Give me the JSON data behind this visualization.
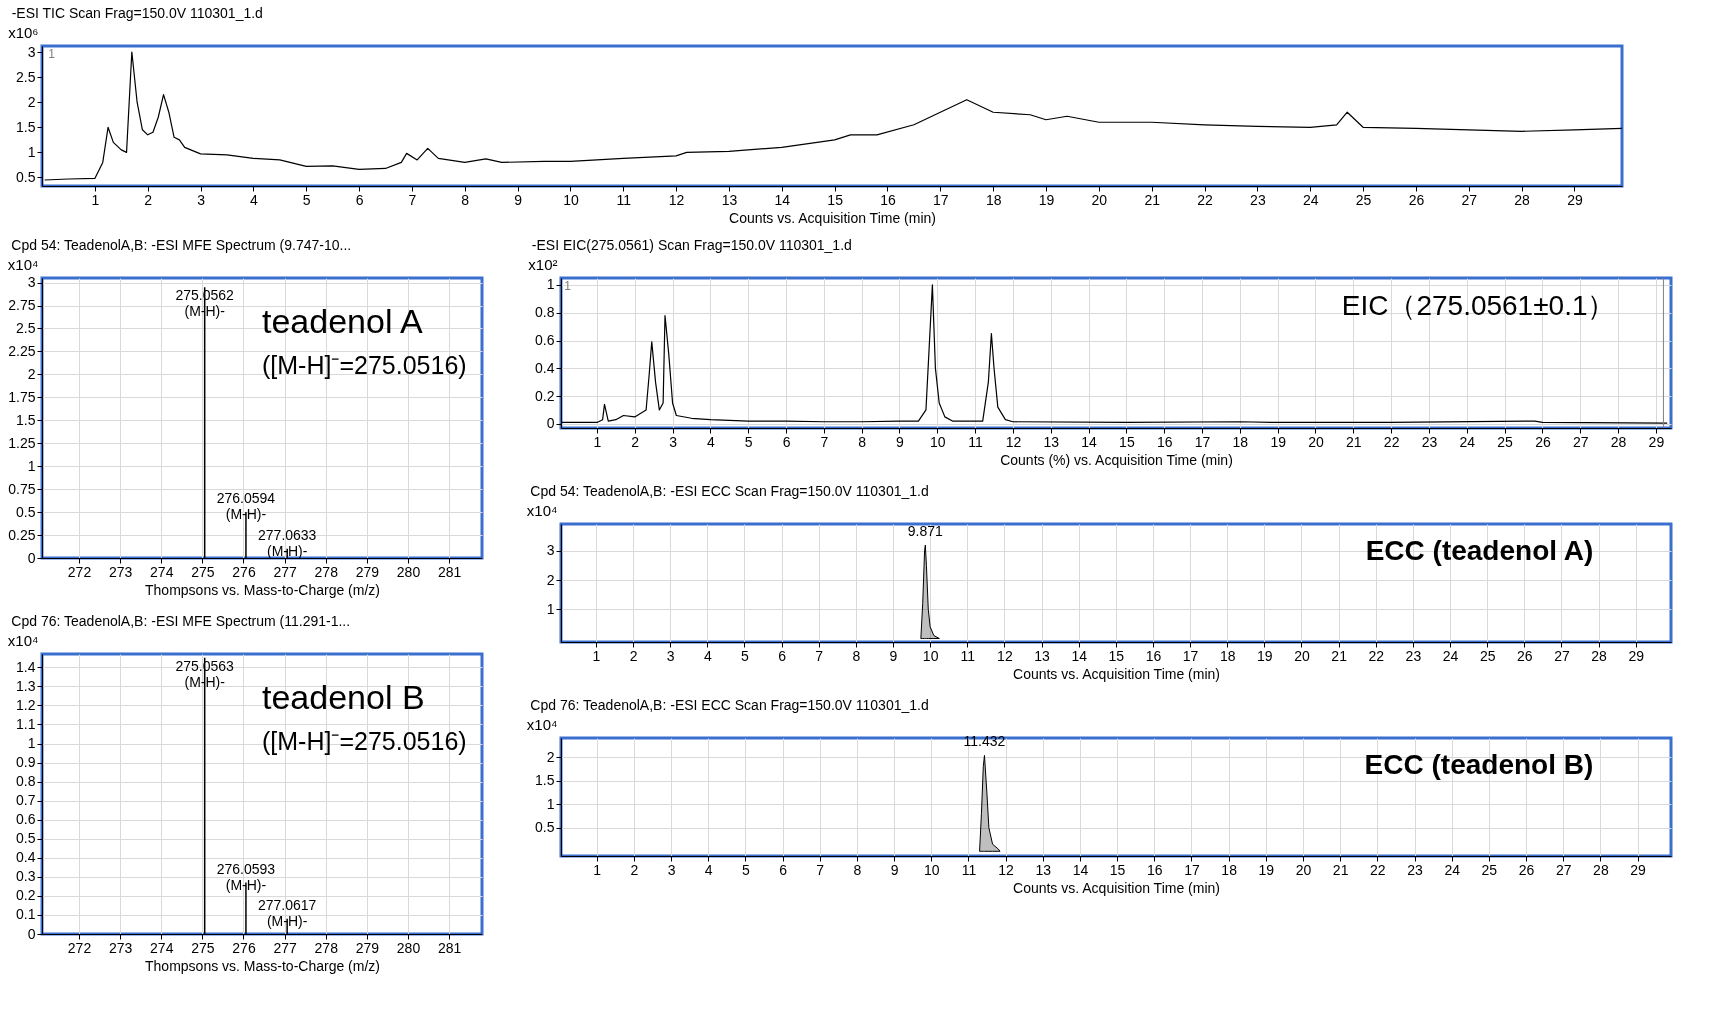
{
  "chart_data": [
    {
      "type": "line",
      "title": "-ESI TIC Scan Frag=150.0V 110301_1.d",
      "xlabel": "Counts vs. Acquisition Time (min)",
      "ylabel": "x10⁶",
      "color": "#000000",
      "grid": false,
      "x": [
        0.05,
        0.5,
        1.0,
        1.15,
        1.25,
        1.35,
        1.5,
        1.6,
        1.7,
        1.8,
        1.9,
        2.0,
        2.1,
        2.2,
        2.3,
        2.4,
        2.5,
        2.6,
        2.7,
        3.0,
        3.5,
        4.0,
        4.5,
        5.0,
        5.5,
        6.0,
        6.5,
        6.8,
        6.9,
        7.1,
        7.3,
        7.5,
        8.0,
        8.4,
        8.7,
        9.5,
        10,
        11,
        12,
        12.2,
        13,
        14,
        15,
        15.3,
        15.8,
        16.5,
        17,
        17.5,
        18,
        18.7,
        19,
        19.4,
        20,
        21,
        22,
        23,
        24,
        24.5,
        24.7,
        25,
        26,
        27,
        28,
        29,
        29.9
      ],
      "values": [
        0.45,
        0.47,
        0.48,
        0.8,
        1.5,
        1.2,
        1.05,
        1.0,
        3.0,
        2.0,
        1.45,
        1.35,
        1.4,
        1.7,
        2.15,
        1.8,
        1.3,
        1.25,
        1.1,
        0.97,
        0.95,
        0.88,
        0.85,
        0.72,
        0.73,
        0.66,
        0.68,
        0.8,
        0.98,
        0.85,
        1.08,
        0.88,
        0.8,
        0.87,
        0.8,
        0.82,
        0.82,
        0.88,
        0.93,
        1.0,
        1.02,
        1.1,
        1.25,
        1.35,
        1.35,
        1.55,
        1.8,
        2.05,
        1.8,
        1.75,
        1.65,
        1.72,
        1.6,
        1.6,
        1.55,
        1.52,
        1.5,
        1.55,
        1.8,
        1.5,
        1.48,
        1.45,
        1.42,
        1.45,
        1.48
      ],
      "xlim": [
        0,
        29.9
      ],
      "ylim": [
        0.33,
        3.12
      ],
      "xticks": [
        1,
        2,
        3,
        4,
        5,
        6,
        7,
        8,
        9,
        10,
        11,
        12,
        13,
        14,
        15,
        16,
        17,
        18,
        19,
        20,
        21,
        22,
        23,
        24,
        25,
        26,
        27,
        28,
        29
      ],
      "yticks": [
        0.5,
        1,
        1.5,
        2,
        2.5,
        3
      ],
      "annotations": [
        "1"
      ]
    },
    {
      "type": "bar",
      "title": "Cpd 54: TeadenolA,B: -ESI MFE Spectrum (9.747-10...",
      "xlabel": "Thompsons vs. Mass-to-Charge (m/z)",
      "ylabel": "x10⁴",
      "color": "#000000",
      "grid": true,
      "x": [
        275.0562,
        276.0594,
        277.0633
      ],
      "values": [
        2.95,
        0.5,
        0.1
      ],
      "xlim": [
        271.1,
        281.8
      ],
      "ylim": [
        0,
        3.05
      ],
      "xticks": [
        272,
        273,
        274,
        275,
        276,
        277,
        278,
        279,
        280,
        281
      ],
      "yticks": [
        0,
        0.25,
        0.5,
        0.75,
        1,
        1.25,
        1.5,
        1.75,
        2,
        2.25,
        2.5,
        2.75,
        3
      ],
      "annotations": [
        {
          "text": "275.0562\n(M-H)-",
          "x": 275.0562,
          "y": 2.95
        },
        {
          "text": "276.0594\n(M-H)-",
          "x": 276.0594,
          "y": 0.5
        },
        {
          "text": "277.0633\n(M-H)-",
          "x": 277.0633,
          "y": 0.1
        },
        "teadenol A",
        "([M-H]⁻=275.0516)"
      ]
    },
    {
      "type": "line",
      "title": "-ESI EIC(275.0561) Scan Frag=150.0V 110301_1.d",
      "xlabel": "Counts (%) vs. Acquisition Time (min)",
      "ylabel": "x10²",
      "color": "#000000",
      "grid": true,
      "x": [
        0.05,
        1.0,
        1.15,
        1.2,
        1.3,
        1.5,
        1.7,
        2.0,
        2.3,
        2.38,
        2.45,
        2.55,
        2.65,
        2.75,
        2.8,
        2.9,
        3.0,
        3.1,
        3.5,
        4,
        5,
        6,
        7,
        8,
        9,
        9.5,
        9.7,
        9.87,
        9.95,
        10.05,
        10.2,
        10.4,
        11.2,
        11.35,
        11.43,
        11.5,
        11.6,
        11.8,
        12,
        15,
        18,
        19,
        22,
        25.8,
        26,
        29.3
      ],
      "values": [
        0.01,
        0.01,
        0.03,
        0.14,
        0.02,
        0.03,
        0.06,
        0.05,
        0.1,
        0.35,
        0.59,
        0.3,
        0.1,
        0.15,
        0.78,
        0.5,
        0.15,
        0.06,
        0.04,
        0.03,
        0.02,
        0.02,
        0.015,
        0.015,
        0.02,
        0.02,
        0.1,
        1.0,
        0.4,
        0.15,
        0.05,
        0.02,
        0.02,
        0.3,
        0.65,
        0.4,
        0.12,
        0.03,
        0.015,
        0.01,
        0.015,
        0.01,
        0.01,
        0.02,
        0.01,
        0.005
      ],
      "xlim": [
        0.05,
        29.4
      ],
      "ylim": [
        -0.03,
        1.05
      ],
      "xticks": [
        1,
        2,
        3,
        4,
        5,
        6,
        7,
        8,
        9,
        10,
        11,
        12,
        13,
        14,
        15,
        16,
        17,
        18,
        19,
        20,
        21,
        22,
        23,
        24,
        25,
        26,
        27,
        28,
        29
      ],
      "yticks": [
        0,
        0.2,
        0.4,
        0.6,
        0.8,
        1
      ],
      "ref_lines": [
        {
          "axis": "x",
          "value": 29.2,
          "color": "#808080"
        }
      ],
      "annotations": [
        "1",
        "EIC（275.0561±0.1）"
      ]
    },
    {
      "type": "area",
      "title": "Cpd 54: TeadenolA,B: -ESI ECC Scan Frag=150.0V 110301_1.d",
      "xlabel": "Counts vs. Acquisition Time (min)",
      "ylabel": "x10⁴",
      "color": "#000000",
      "grid": true,
      "x": [
        9.75,
        9.8,
        9.85,
        9.871,
        9.9,
        9.95,
        10.0,
        10.1,
        10.25
      ],
      "values": [
        0,
        1.2,
        3.0,
        3.2,
        2.5,
        1.0,
        0.4,
        0.1,
        0
      ],
      "xlim": [
        0.06,
        29.95
      ],
      "ylim": [
        -0.12,
        3.92
      ],
      "xticks": [
        1,
        2,
        3,
        4,
        5,
        6,
        7,
        8,
        9,
        10,
        11,
        12,
        13,
        14,
        15,
        16,
        17,
        18,
        19,
        20,
        21,
        22,
        23,
        24,
        25,
        26,
        27,
        28,
        29
      ],
      "yticks": [
        1,
        2,
        3
      ],
      "annotations": [
        {
          "text": "9.871",
          "x": 9.871,
          "y": 3.2
        },
        "ECC (teadenol A)"
      ]
    },
    {
      "type": "bar",
      "title": "Cpd 76: TeadenolA,B: -ESI MFE Spectrum (11.291-1...",
      "xlabel": "Thompsons vs. Mass-to-Charge (m/z)",
      "ylabel": "x10⁴",
      "color": "#000000",
      "grid": true,
      "x": [
        275.0563,
        276.0593,
        277.0617
      ],
      "values": [
        1.45,
        0.27,
        0.08
      ],
      "xlim": [
        271.1,
        281.8
      ],
      "ylim": [
        0,
        1.47
      ],
      "xticks": [
        272,
        273,
        274,
        275,
        276,
        277,
        278,
        279,
        280,
        281
      ],
      "yticks": [
        0,
        0.1,
        0.2,
        0.3,
        0.4,
        0.5,
        0.6,
        0.7,
        0.8,
        0.9,
        1,
        1.1,
        1.2,
        1.3,
        1.4
      ],
      "annotations": [
        {
          "text": "275.0563\n(M-H)-",
          "x": 275.0563,
          "y": 1.45
        },
        {
          "text": "276.0593\n(M-H)-",
          "x": 276.0593,
          "y": 0.27
        },
        {
          "text": "277.0617\n(M-H)-",
          "x": 277.0617,
          "y": 0.08
        },
        "teadenol B",
        "([M-H]⁻=275.0516)"
      ]
    },
    {
      "type": "area",
      "title": "Cpd 76: TeadenolA,B: -ESI ECC Scan Frag=150.0V 110301_1.d",
      "xlabel": "Counts vs. Acquisition Time (min)",
      "ylabel": "x10⁴",
      "color": "#000000",
      "grid": true,
      "x": [
        11.3,
        11.35,
        11.4,
        11.432,
        11.5,
        11.55,
        11.65,
        11.8,
        11.85
      ],
      "values": [
        0,
        0.8,
        1.8,
        2.04,
        1.2,
        0.5,
        0.15,
        0.05,
        0
      ],
      "xlim": [
        0.04,
        29.9
      ],
      "ylim": [
        -0.1,
        2.41
      ],
      "xticks": [
        1,
        2,
        3,
        4,
        5,
        6,
        7,
        8,
        9,
        10,
        11,
        12,
        13,
        14,
        15,
        16,
        17,
        18,
        19,
        20,
        21,
        22,
        23,
        24,
        25,
        26,
        27,
        28,
        29
      ],
      "yticks": [
        0.5,
        1,
        1.5,
        2
      ],
      "annotations": [
        {
          "text": "11.432",
          "x": 11.432,
          "y": 2.04
        },
        "ECC (teadenol B)"
      ]
    }
  ]
}
